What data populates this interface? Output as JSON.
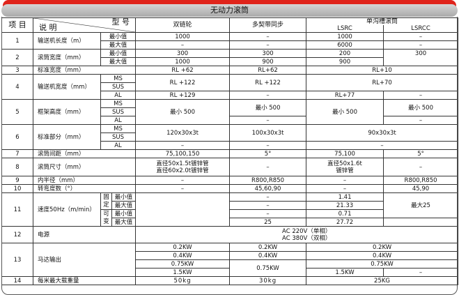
{
  "title": "无动力滚筒",
  "header": {
    "item": "项 目",
    "desc": "说 明",
    "model": "型 号",
    "cols": [
      "双链轮",
      "多契带同步",
      "单沟槽滚筒"
    ],
    "sub": [
      "LSRC",
      "LSRCC"
    ]
  },
  "rows": [
    {
      "no": "1",
      "desc": "输送机长度（m）",
      "spec": [
        "最小值",
        "最大值"
      ],
      "values": [
        "1000",
        "–",
        "1000",
        "–",
        "–",
        "–",
        "6000",
        "–"
      ]
    },
    {
      "no": "2",
      "desc": "滚筒宽度（mm）",
      "spec": [
        "最小值",
        "最大值"
      ],
      "values": [
        "300",
        "300",
        "200",
        "300",
        "1000",
        "900",
        "900"
      ]
    },
    {
      "no": "3",
      "desc": "标准宽度（mm）",
      "values": [
        "RL +62",
        "RL+62",
        "RL+10"
      ]
    },
    {
      "no": "4",
      "desc": "输送机宽度（mm）",
      "spec": [
        "MS",
        "SUS",
        "AL"
      ],
      "values": [
        "RL +122",
        "RL +122",
        "RL+70",
        "RL +129",
        "–",
        "RL+77",
        "–"
      ]
    },
    {
      "no": "5",
      "desc": "框架高度（mm）",
      "spec": [
        "MS",
        "SUS",
        "AL"
      ],
      "values": [
        "最小 500",
        "最小 500",
        "最小 500",
        "最小 500",
        "–",
        "–"
      ]
    },
    {
      "no": "6",
      "desc": "标准部分（mm）",
      "spec": [
        "MS",
        "SUS",
        "AL"
      ],
      "values": [
        "120x30x3t",
        "100x30x3t",
        "90x30x3t",
        "–",
        "–",
        "–"
      ]
    },
    {
      "no": "7",
      "desc": "滚筒间距（mm）",
      "values": [
        "75,100,150",
        "5°",
        "75,100",
        "5°"
      ]
    },
    {
      "no": "8",
      "desc": "滚筒尺寸（mm）",
      "values": [
        "直径50x1.5t镀锌管",
        "直径60x2.0t镀锌管",
        "–",
        "直径50x1.6t",
        "镀锌管",
        "–"
      ]
    },
    {
      "no": "9",
      "desc": "内半径（mm）",
      "values": [
        "–",
        "R800,R850",
        "–",
        "R800,R850"
      ]
    },
    {
      "no": "10",
      "desc": "转弯度数（°）",
      "values": [
        "–",
        "45,60,90",
        "–",
        "45,90"
      ]
    },
    {
      "no": "11",
      "desc": "速度50Hz（m/min）",
      "groups": [
        "固定",
        "可变"
      ],
      "spec": [
        "最小值",
        "最大值",
        "最小值",
        "最大值"
      ],
      "values": [
        "–",
        "1.41",
        "最大25",
        "–",
        "21.33",
        "–",
        "0.71",
        "25",
        "27.72"
      ]
    },
    {
      "no": "12",
      "desc": "电源",
      "values": [
        "AC 220V（单相）",
        "AC 380V（双相）"
      ]
    },
    {
      "no": "13",
      "desc": "马达输出",
      "values": [
        "0.2KW",
        "0.2KW",
        "0.2KW",
        "0.4KW",
        "0.4KW",
        "0.4KW",
        "0.75KW",
        "0.75KW",
        "0.75KW",
        "1.5KW",
        "1.5KW",
        "–"
      ]
    },
    {
      "no": "14",
      "desc": "每米最大载重量",
      "values": [
        "50kg",
        "30kg",
        "25KG"
      ]
    }
  ]
}
